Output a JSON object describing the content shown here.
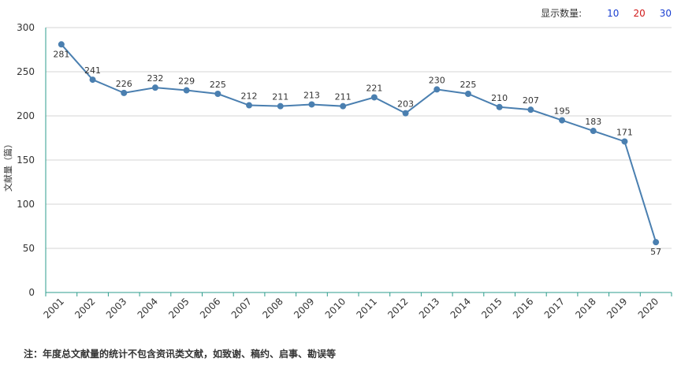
{
  "controls": {
    "label": "显示数量:",
    "options": [
      "10",
      "20",
      "30"
    ]
  },
  "chart_data": {
    "type": "line",
    "title": "",
    "xlabel": "",
    "ylabel": "文献量（篇）",
    "ylim": [
      0,
      300
    ],
    "yticks": [
      0,
      50,
      100,
      150,
      200,
      250,
      300
    ],
    "grid": true,
    "x": [
      "2001",
      "2002",
      "2003",
      "2004",
      "2005",
      "2006",
      "2007",
      "2008",
      "2009",
      "2010",
      "2011",
      "2012",
      "2013",
      "2014",
      "2015",
      "2016",
      "2017",
      "2018",
      "2019",
      "2020"
    ],
    "series": [
      {
        "values": [
          281,
          241,
          226,
          232,
          229,
          225,
          212,
          211,
          213,
          211,
          221,
          203,
          230,
          225,
          210,
          207,
          195,
          183,
          171,
          57
        ]
      }
    ],
    "colors": {
      "line": "#4a7fb0",
      "axis": "#2e9c8c",
      "grid": "#d6d6d6"
    }
  },
  "footnote": "注：年度总文献量的统计不包含资讯类文献，如致谢、稿约、启事、勘误等"
}
